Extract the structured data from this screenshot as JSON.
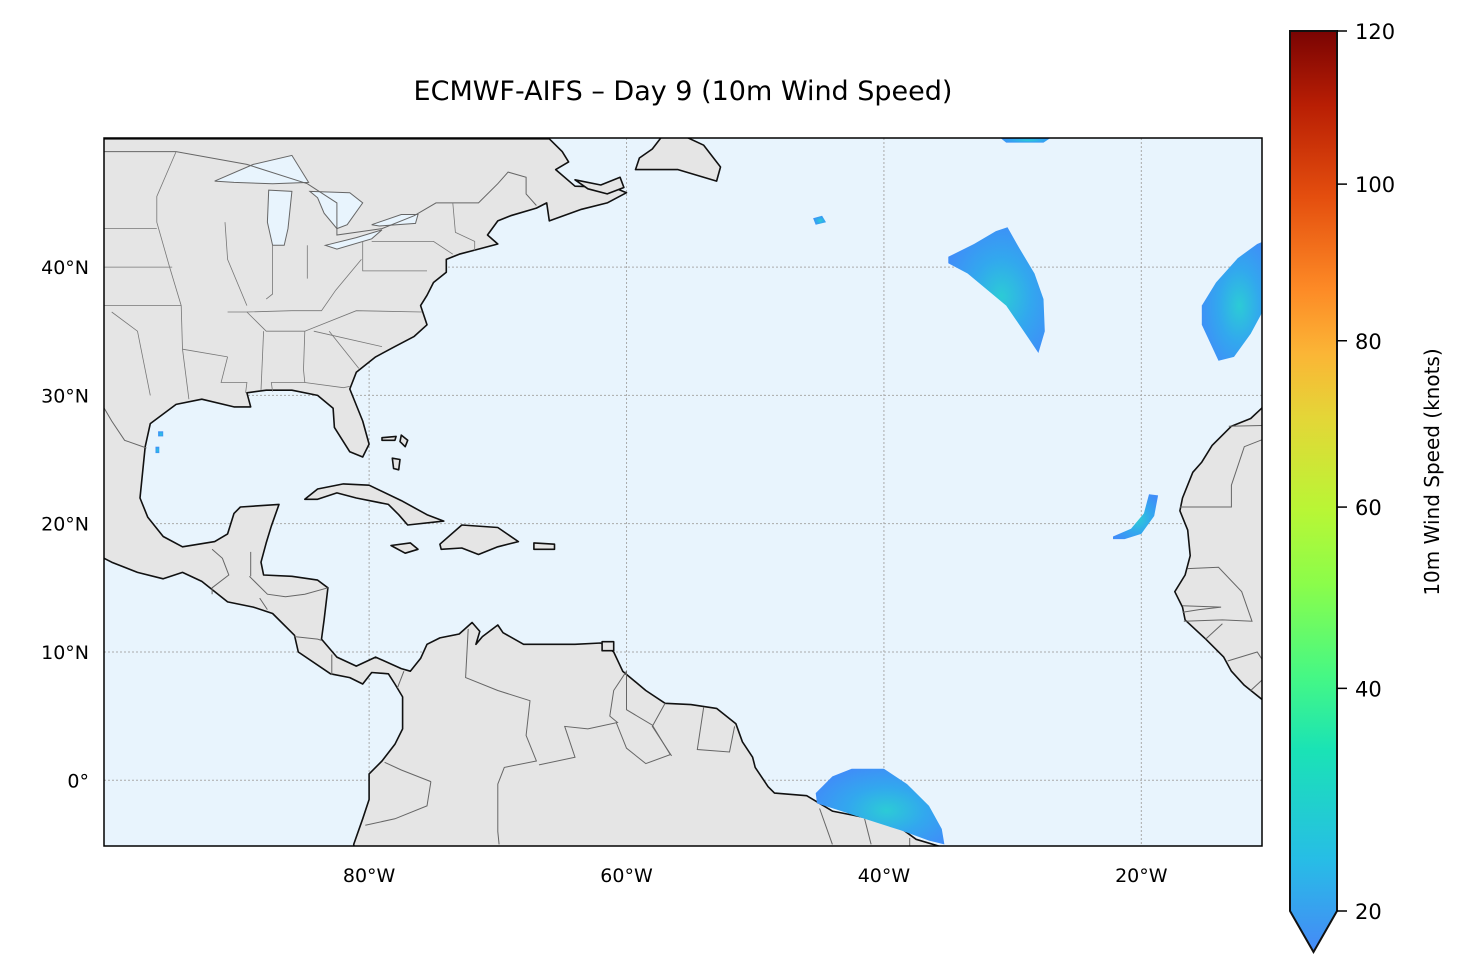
{
  "title": "ECMWF-AIFS – Day 9 (10m Wind Speed)",
  "map": {
    "projection": "PlateCarree",
    "extent_lon": [
      -100,
      -10
    ],
    "extent_lat": [
      -5,
      50
    ],
    "lon_ticks": [
      {
        "value": -80,
        "label": "80°W"
      },
      {
        "value": -60,
        "label": "60°W"
      },
      {
        "value": -40,
        "label": "40°W"
      },
      {
        "value": -20,
        "label": "20°W"
      }
    ],
    "lat_ticks": [
      {
        "value": 0,
        "label": "0°"
      },
      {
        "value": 10,
        "label": "10°N"
      },
      {
        "value": 20,
        "label": "20°N"
      },
      {
        "value": 30,
        "label": "30°N"
      },
      {
        "value": 40,
        "label": "40°N"
      }
    ],
    "gridlines": true,
    "colors": {
      "ocean": "#e8f4fd",
      "land": "#e5e5e5",
      "coastline": "#111111",
      "borders": "#666666"
    }
  },
  "colorbar": {
    "label": "10m Wind Speed (knots)",
    "colormap": "turbo",
    "range": [
      20,
      120
    ],
    "extend": "min",
    "ticks": [
      "20",
      "40",
      "60",
      "80",
      "100",
      "120"
    ]
  }
}
